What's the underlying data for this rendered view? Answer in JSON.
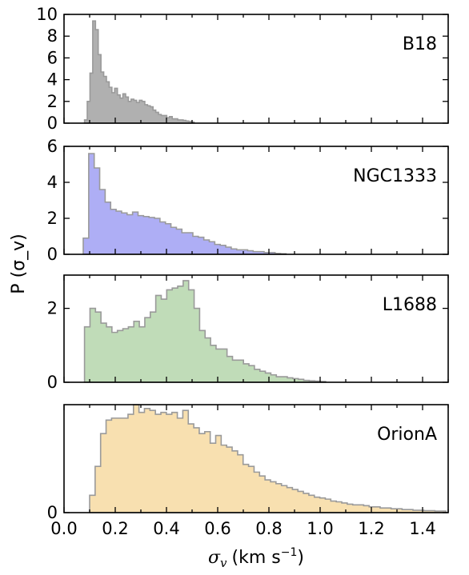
{
  "figure": {
    "ylabel": "P (σ_v)",
    "xlabel_symbol": "σ",
    "xlabel_subscript": "v",
    "xlabel_unit": "(km s",
    "xlabel_exponent": "−1",
    "xlabel_close": ")"
  },
  "chart_data": [
    {
      "type": "histogram",
      "panel": "B18",
      "name": "B18",
      "label": "B18",
      "color": "#b0b0b0",
      "edge_color": "#9a9a9a",
      "bin_width": 0.0107,
      "xlim": [
        0.0,
        1.5
      ],
      "ylim": [
        0,
        10
      ],
      "yticks": [
        0,
        2,
        4,
        6,
        8,
        10
      ],
      "yticklabels": [
        "0",
        "2",
        "4",
        "6",
        "8",
        "10"
      ],
      "x": [
        0.08,
        0.0907,
        0.1014,
        0.1121,
        0.1228,
        0.1335,
        0.1442,
        0.1549,
        0.1656,
        0.1763,
        0.187,
        0.1977,
        0.2084,
        0.2191,
        0.2298,
        0.2405,
        0.2512,
        0.2619,
        0.2726,
        0.2833,
        0.294,
        0.3047,
        0.3154,
        0.3261,
        0.3368,
        0.3475,
        0.3582,
        0.3689,
        0.3796,
        0.3903,
        0.401,
        0.4117,
        0.4224,
        0.4331,
        0.4438,
        0.4545,
        0.4652,
        0.4759,
        0.4866,
        0.4973
      ],
      "y": [
        0.3,
        2.0,
        4.6,
        9.4,
        8.6,
        6.3,
        4.7,
        4.3,
        3.8,
        3.3,
        2.8,
        3.2,
        2.6,
        2.3,
        2.7,
        2.4,
        2.0,
        2.2,
        2.1,
        1.9,
        2.1,
        2.0,
        1.7,
        1.6,
        1.5,
        1.2,
        1.0,
        0.8,
        0.7,
        0.7,
        0.5,
        0.6,
        0.4,
        0.4,
        0.3,
        0.3,
        0.25,
        0.2,
        0.15,
        0.1
      ]
    },
    {
      "type": "histogram",
      "panel": "NGC1333",
      "name": "NGC1333",
      "label": "NGC1333",
      "color": "#aeaef5",
      "edge_color": "#9a9a9a",
      "bin_width": 0.0214,
      "xlim": [
        0.0,
        1.5
      ],
      "ylim": [
        0,
        6
      ],
      "yticks": [
        0,
        2,
        4,
        6
      ],
      "yticklabels": [
        "0",
        "2",
        "4",
        "6"
      ],
      "x": [
        0.075,
        0.0964,
        0.1178,
        0.1392,
        0.1606,
        0.182,
        0.2034,
        0.2248,
        0.2462,
        0.2676,
        0.289,
        0.3104,
        0.3318,
        0.3532,
        0.3746,
        0.396,
        0.4174,
        0.4388,
        0.4602,
        0.4816,
        0.503,
        0.5244,
        0.5458,
        0.5672,
        0.5886,
        0.61,
        0.6314,
        0.6528,
        0.6742,
        0.6956,
        0.717,
        0.7384,
        0.7598,
        0.7812,
        0.8026,
        0.824,
        0.8454
      ],
      "y": [
        0.9,
        5.6,
        4.8,
        3.6,
        2.9,
        2.5,
        2.4,
        2.3,
        2.2,
        2.35,
        2.15,
        2.1,
        2.05,
        2.0,
        1.8,
        1.7,
        1.5,
        1.4,
        1.2,
        1.2,
        1.0,
        0.95,
        0.8,
        0.7,
        0.55,
        0.5,
        0.4,
        0.3,
        0.25,
        0.25,
        0.2,
        0.15,
        0.15,
        0.1,
        0.1,
        0.05,
        0.03
      ]
    },
    {
      "type": "histogram",
      "panel": "L1688",
      "name": "L1688",
      "label": "L1688",
      "color": "#c0dcb8",
      "edge_color": "#9a9a9a",
      "bin_width": 0.0214,
      "xlim": [
        0.0,
        1.5
      ],
      "ylim": [
        0,
        2.9
      ],
      "yticks": [
        0,
        2
      ],
      "yticklabels": [
        "0",
        "2"
      ],
      "x": [
        0.08,
        0.1014,
        0.1228,
        0.1442,
        0.1656,
        0.187,
        0.2084,
        0.2298,
        0.2512,
        0.2726,
        0.294,
        0.3154,
        0.3368,
        0.3582,
        0.3796,
        0.401,
        0.4224,
        0.4438,
        0.4652,
        0.4866,
        0.508,
        0.5294,
        0.5508,
        0.5722,
        0.5936,
        0.615,
        0.6364,
        0.6578,
        0.6792,
        0.7006,
        0.722,
        0.7434,
        0.7648,
        0.7862,
        0.8076,
        0.829,
        0.8504,
        0.8718,
        0.8932,
        0.9146,
        0.936,
        0.9574,
        0.9788,
        1.0002
      ],
      "y": [
        1.5,
        2.0,
        1.9,
        1.6,
        1.5,
        1.35,
        1.4,
        1.45,
        1.5,
        1.65,
        1.5,
        1.75,
        1.9,
        2.35,
        2.25,
        2.5,
        2.55,
        2.6,
        2.75,
        2.5,
        2.0,
        1.4,
        1.2,
        1.0,
        0.9,
        0.9,
        0.7,
        0.6,
        0.6,
        0.5,
        0.45,
        0.35,
        0.3,
        0.25,
        0.2,
        0.15,
        0.15,
        0.12,
        0.1,
        0.08,
        0.05,
        0.04,
        0.03,
        0.02
      ]
    },
    {
      "type": "histogram",
      "panel": "OrionA",
      "name": "OrionA",
      "label": "OrionA",
      "color": "#f8e0b0",
      "edge_color": "#9a9a9a",
      "bin_width": 0.0214,
      "xlim": [
        0.0,
        1.5
      ],
      "ylim": [
        0,
        2.8
      ],
      "yticks": [
        0
      ],
      "yticklabels": [
        "0"
      ],
      "x": [
        0.1,
        0.1214,
        0.1428,
        0.1642,
        0.1856,
        0.207,
        0.2284,
        0.2498,
        0.2712,
        0.2926,
        0.314,
        0.3354,
        0.3568,
        0.3782,
        0.3996,
        0.421,
        0.4424,
        0.4638,
        0.4852,
        0.5066,
        0.528,
        0.5494,
        0.5708,
        0.5922,
        0.6136,
        0.635,
        0.6564,
        0.6778,
        0.6992,
        0.7206,
        0.742,
        0.7634,
        0.7848,
        0.8062,
        0.8276,
        0.849,
        0.8704,
        0.8918,
        0.9132,
        0.9346,
        0.956,
        0.9774,
        0.9988,
        1.0202,
        1.0416,
        1.063,
        1.0844,
        1.1058,
        1.1272,
        1.1486,
        1.17,
        1.1914,
        1.2128,
        1.2342,
        1.2556,
        1.277,
        1.2984,
        1.3198,
        1.3412,
        1.3626,
        1.384,
        1.4054,
        1.4268,
        1.4482,
        1.4696
      ],
      "y": [
        0.45,
        1.2,
        2.05,
        2.4,
        2.45,
        2.45,
        2.45,
        2.55,
        2.8,
        2.6,
        2.7,
        2.65,
        2.55,
        2.6,
        2.55,
        2.6,
        2.45,
        2.65,
        2.3,
        2.2,
        2.05,
        2.1,
        1.8,
        2.0,
        1.75,
        1.7,
        1.6,
        1.5,
        1.25,
        1.2,
        1.05,
        0.95,
        0.85,
        0.8,
        0.75,
        0.7,
        0.65,
        0.6,
        0.55,
        0.5,
        0.45,
        0.4,
        0.38,
        0.35,
        0.3,
        0.28,
        0.25,
        0.22,
        0.2,
        0.2,
        0.18,
        0.15,
        0.15,
        0.12,
        0.12,
        0.1,
        0.1,
        0.08,
        0.08,
        0.06,
        0.06,
        0.05,
        0.05,
        0.04,
        0.04
      ],
      "xticks": [
        0.0,
        0.2,
        0.4,
        0.6,
        0.8,
        1.0,
        1.2,
        1.4
      ],
      "xticklabels": [
        "0.0",
        "0.2",
        "0.4",
        "0.6",
        "0.8",
        "1.0",
        "1.2",
        "1.4"
      ]
    }
  ]
}
